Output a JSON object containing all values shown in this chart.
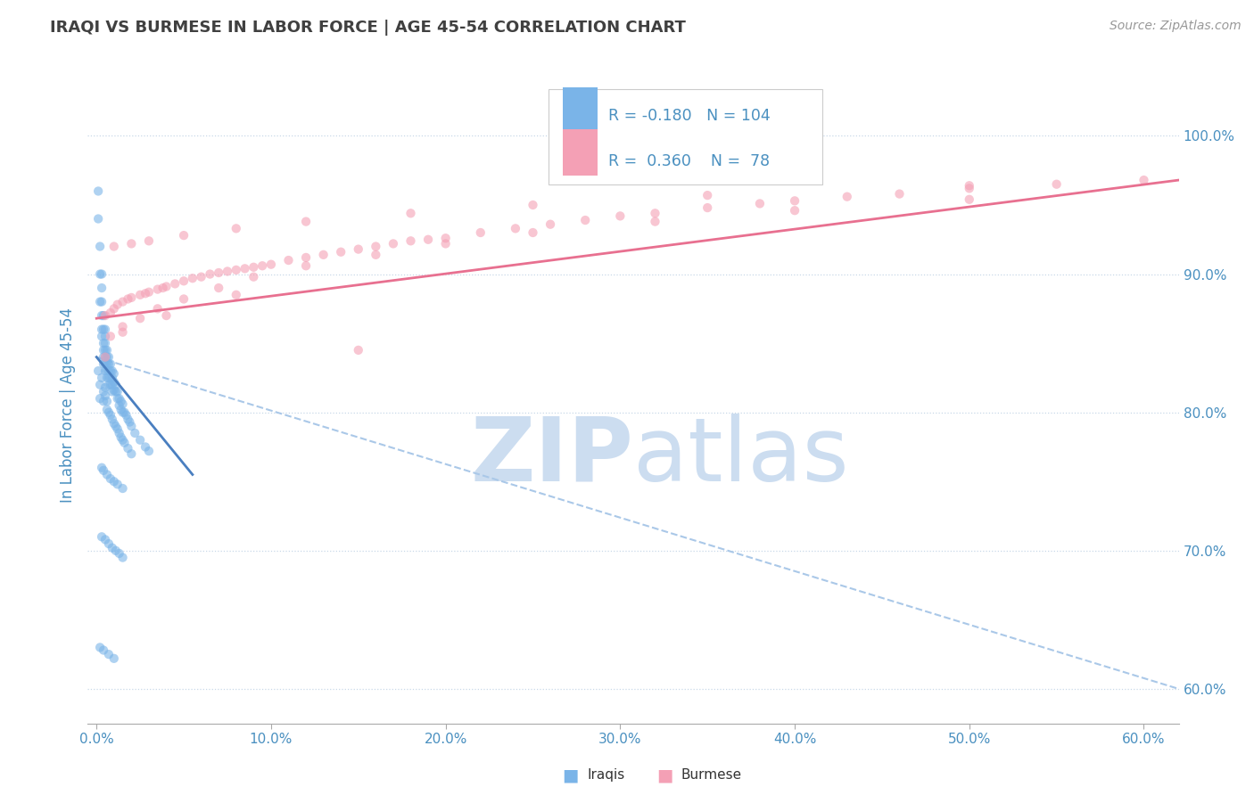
{
  "title": "IRAQI VS BURMESE IN LABOR FORCE | AGE 45-54 CORRELATION CHART",
  "source": "Source: ZipAtlas.com",
  "ylabel": "In Labor Force | Age 45-54",
  "x_tick_labels": [
    "0.0%",
    "10.0%",
    "20.0%",
    "30.0%",
    "40.0%",
    "50.0%",
    "60.0%"
  ],
  "x_ticks": [
    0.0,
    0.1,
    0.2,
    0.3,
    0.4,
    0.5,
    0.6
  ],
  "y_tick_labels": [
    "60.0%",
    "70.0%",
    "80.0%",
    "90.0%",
    "100.0%"
  ],
  "y_ticks": [
    0.6,
    0.7,
    0.8,
    0.9,
    1.0
  ],
  "xlim": [
    -0.005,
    0.62
  ],
  "ylim": [
    0.575,
    1.035
  ],
  "legend_R_iraqi": "-0.180",
  "legend_N_iraqi": "104",
  "legend_R_burmese": "0.360",
  "legend_N_burmese": "78",
  "iraqi_color": "#7ab4e8",
  "burmese_color": "#f4a0b5",
  "iraqi_line_color": "#4a7fc0",
  "burmese_line_color": "#e87090",
  "dashed_line_color": "#aac8e8",
  "title_color": "#404040",
  "tick_label_color": "#4a90c0",
  "background_color": "#ffffff",
  "watermark_color": "#ccddf0",
  "dot_size": 55,
  "dot_alpha": 0.6,
  "iraqi_x": [
    0.001,
    0.001,
    0.002,
    0.002,
    0.002,
    0.003,
    0.003,
    0.003,
    0.003,
    0.003,
    0.003,
    0.004,
    0.004,
    0.004,
    0.004,
    0.004,
    0.004,
    0.005,
    0.005,
    0.005,
    0.005,
    0.005,
    0.005,
    0.005,
    0.006,
    0.006,
    0.006,
    0.006,
    0.006,
    0.007,
    0.007,
    0.007,
    0.007,
    0.007,
    0.008,
    0.008,
    0.008,
    0.008,
    0.009,
    0.009,
    0.009,
    0.009,
    0.01,
    0.01,
    0.01,
    0.011,
    0.011,
    0.012,
    0.012,
    0.013,
    0.013,
    0.014,
    0.014,
    0.015,
    0.015,
    0.016,
    0.017,
    0.018,
    0.019,
    0.02,
    0.022,
    0.025,
    0.028,
    0.03,
    0.001,
    0.002,
    0.002,
    0.003,
    0.004,
    0.004,
    0.005,
    0.005,
    0.006,
    0.006,
    0.007,
    0.008,
    0.009,
    0.01,
    0.011,
    0.012,
    0.013,
    0.014,
    0.015,
    0.016,
    0.018,
    0.02,
    0.003,
    0.004,
    0.006,
    0.008,
    0.01,
    0.012,
    0.015,
    0.003,
    0.005,
    0.007,
    0.009,
    0.011,
    0.013,
    0.015,
    0.002,
    0.004,
    0.007,
    0.01
  ],
  "iraqi_y": [
    0.96,
    0.94,
    0.92,
    0.9,
    0.88,
    0.9,
    0.89,
    0.88,
    0.87,
    0.86,
    0.855,
    0.87,
    0.86,
    0.85,
    0.845,
    0.84,
    0.835,
    0.86,
    0.855,
    0.85,
    0.845,
    0.84,
    0.835,
    0.83,
    0.845,
    0.84,
    0.835,
    0.83,
    0.825,
    0.84,
    0.835,
    0.83,
    0.825,
    0.82,
    0.835,
    0.83,
    0.825,
    0.82,
    0.83,
    0.825,
    0.82,
    0.815,
    0.828,
    0.822,
    0.816,
    0.82,
    0.815,
    0.815,
    0.81,
    0.81,
    0.805,
    0.808,
    0.802,
    0.806,
    0.8,
    0.8,
    0.798,
    0.795,
    0.793,
    0.79,
    0.785,
    0.78,
    0.775,
    0.772,
    0.83,
    0.82,
    0.81,
    0.825,
    0.815,
    0.808,
    0.818,
    0.812,
    0.808,
    0.802,
    0.8,
    0.798,
    0.795,
    0.792,
    0.79,
    0.788,
    0.785,
    0.782,
    0.78,
    0.778,
    0.774,
    0.77,
    0.76,
    0.758,
    0.755,
    0.752,
    0.75,
    0.748,
    0.745,
    0.71,
    0.708,
    0.705,
    0.702,
    0.7,
    0.698,
    0.695,
    0.63,
    0.628,
    0.625,
    0.622
  ],
  "burmese_x": [
    0.005,
    0.008,
    0.01,
    0.012,
    0.015,
    0.018,
    0.02,
    0.025,
    0.028,
    0.03,
    0.035,
    0.038,
    0.04,
    0.045,
    0.05,
    0.055,
    0.06,
    0.065,
    0.07,
    0.075,
    0.08,
    0.085,
    0.09,
    0.095,
    0.1,
    0.11,
    0.12,
    0.13,
    0.14,
    0.15,
    0.16,
    0.17,
    0.18,
    0.19,
    0.2,
    0.22,
    0.24,
    0.26,
    0.28,
    0.3,
    0.32,
    0.35,
    0.38,
    0.4,
    0.43,
    0.46,
    0.5,
    0.55,
    0.6,
    0.008,
    0.015,
    0.025,
    0.035,
    0.05,
    0.07,
    0.09,
    0.12,
    0.16,
    0.2,
    0.25,
    0.32,
    0.4,
    0.5,
    0.01,
    0.02,
    0.03,
    0.05,
    0.08,
    0.12,
    0.18,
    0.25,
    0.35,
    0.5,
    0.005,
    0.015,
    0.04,
    0.08,
    0.15
  ],
  "burmese_y": [
    0.87,
    0.872,
    0.875,
    0.878,
    0.88,
    0.882,
    0.883,
    0.885,
    0.886,
    0.887,
    0.889,
    0.89,
    0.891,
    0.893,
    0.895,
    0.897,
    0.898,
    0.9,
    0.901,
    0.902,
    0.903,
    0.904,
    0.905,
    0.906,
    0.907,
    0.91,
    0.912,
    0.914,
    0.916,
    0.918,
    0.92,
    0.922,
    0.924,
    0.925,
    0.926,
    0.93,
    0.933,
    0.936,
    0.939,
    0.942,
    0.944,
    0.948,
    0.951,
    0.953,
    0.956,
    0.958,
    0.962,
    0.965,
    0.968,
    0.855,
    0.862,
    0.868,
    0.875,
    0.882,
    0.89,
    0.898,
    0.906,
    0.914,
    0.922,
    0.93,
    0.938,
    0.946,
    0.954,
    0.92,
    0.922,
    0.924,
    0.928,
    0.933,
    0.938,
    0.944,
    0.95,
    0.957,
    0.964,
    0.84,
    0.858,
    0.87,
    0.885,
    0.845
  ],
  "iraqi_trend_x": [
    0.0,
    0.055
  ],
  "iraqi_trend_y": [
    0.84,
    0.755
  ],
  "burmese_trend_x": [
    0.0,
    0.62
  ],
  "burmese_trend_y": [
    0.868,
    0.968
  ],
  "dashed_trend_x": [
    0.0,
    0.62
  ],
  "dashed_trend_y": [
    0.84,
    0.6
  ]
}
